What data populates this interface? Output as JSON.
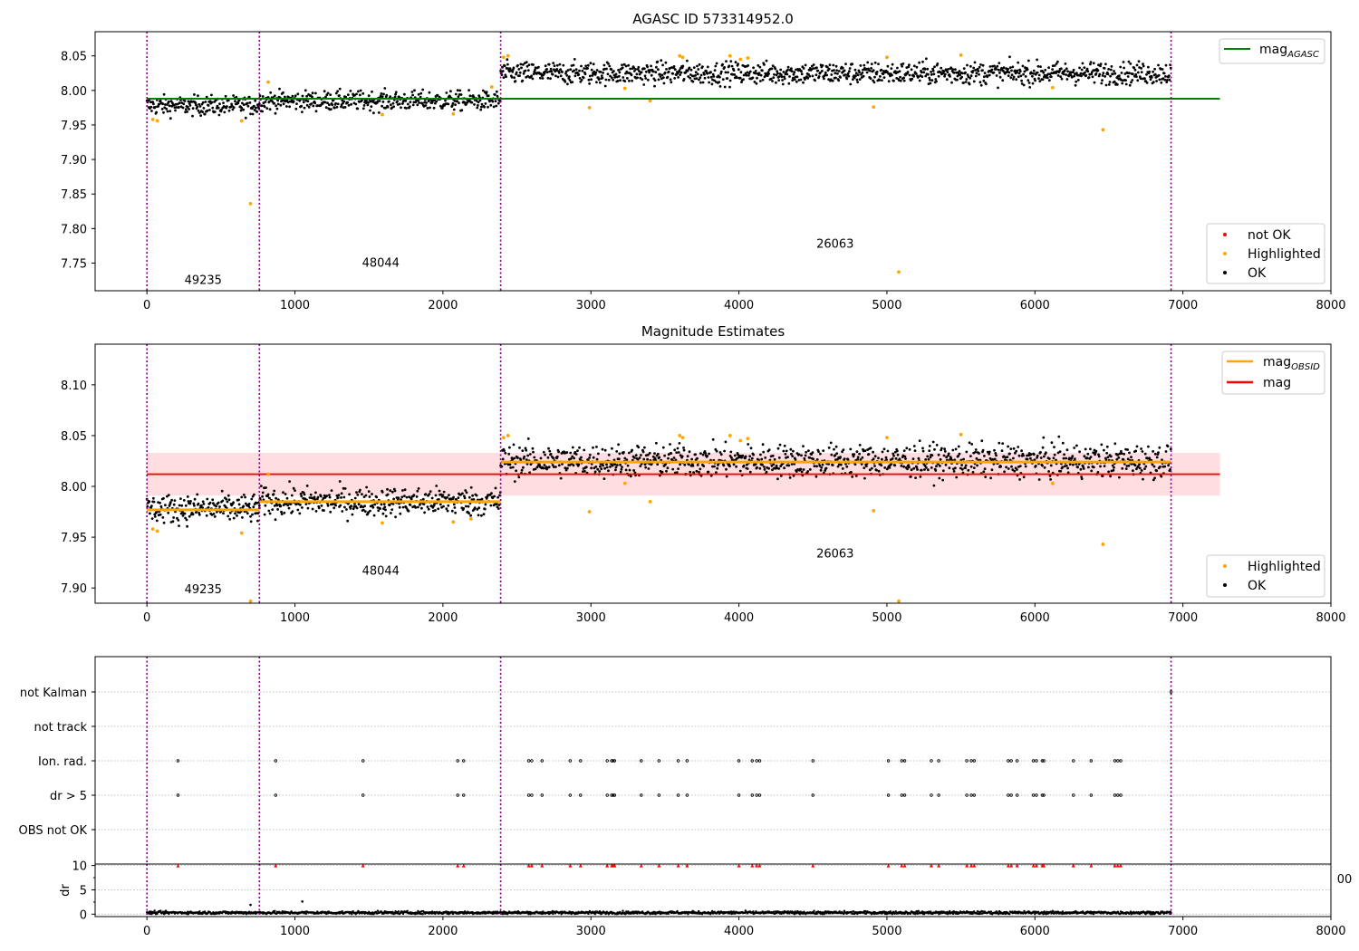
{
  "figure": {
    "title": "AGASC ID 573314952.0",
    "colors": {
      "ok": "#000000",
      "highlighted": "#ffa500",
      "not_ok": "#ff0000",
      "agasc_line": "#008000",
      "mag_line": "#ff0000",
      "mag_band": "#ffdde1",
      "obsid_line": "#ffa500",
      "boundary": "#800080",
      "grid": "#b0b0b0"
    }
  },
  "chart_data": [
    {
      "type": "scatter",
      "title": "AGASC ID 573314952.0",
      "xlim": [
        -350,
        8000
      ],
      "ylim": [
        7.71,
        8.085
      ],
      "xticks": [
        0,
        1000,
        2000,
        3000,
        4000,
        5000,
        6000,
        7000,
        8000
      ],
      "yticks": [
        7.75,
        7.8,
        7.85,
        7.9,
        7.95,
        8.0,
        8.05
      ],
      "obsid_boundaries": [
        0,
        760,
        2390,
        6920
      ],
      "obsid_labels": [
        {
          "text": "49235",
          "x": 380,
          "y": 7.72
        },
        {
          "text": "48044",
          "x": 1580,
          "y": 7.745
        },
        {
          "text": "26063",
          "x": 4650,
          "y": 7.772
        }
      ],
      "segments": [
        {
          "obsid": "49235",
          "x_range": [
            0,
            760
          ],
          "mag": 7.978,
          "spread": 0.007
        },
        {
          "obsid": "48044",
          "x_range": [
            760,
            2390
          ],
          "mag": 7.985,
          "spread": 0.007
        },
        {
          "obsid": "26063",
          "x_range": [
            2390,
            6920
          ],
          "mag": 8.025,
          "spread": 0.008
        }
      ],
      "series": [
        {
          "name": "mag_AGASC",
          "kind": "hline",
          "y": 7.988,
          "x_range": [
            0,
            7250
          ]
        }
      ],
      "highlighted": [
        [
          40,
          7.958
        ],
        [
          70,
          7.956
        ],
        [
          640,
          7.956
        ],
        [
          700,
          7.836
        ],
        [
          820,
          8.012
        ],
        [
          1590,
          7.965
        ],
        [
          2070,
          7.966
        ],
        [
          2330,
          8.005
        ],
        [
          2410,
          8.048
        ],
        [
          2440,
          8.05
        ],
        [
          2990,
          7.975
        ],
        [
          3230,
          8.003
        ],
        [
          3400,
          7.985
        ],
        [
          3600,
          8.05
        ],
        [
          3620,
          8.048
        ],
        [
          3940,
          8.05
        ],
        [
          4010,
          8.045
        ],
        [
          4060,
          8.047
        ],
        [
          4910,
          7.976
        ],
        [
          5000,
          8.048
        ],
        [
          5080,
          7.737
        ],
        [
          5500,
          8.051
        ],
        [
          6120,
          8.004
        ],
        [
          6460,
          7.943
        ]
      ],
      "legend_upper": {
        "position": "top-right",
        "entries": [
          {
            "label": "mag",
            "sub": "AGASC",
            "color": "#008000"
          }
        ]
      },
      "legend_lower": {
        "position": "bottom-right",
        "entries": [
          {
            "label": "not OK",
            "color": "#ff0000"
          },
          {
            "label": "Highlighted",
            "color": "#ffa500"
          },
          {
            "label": "OK",
            "color": "#000000"
          }
        ]
      }
    },
    {
      "type": "scatter",
      "title": "Magnitude Estimates",
      "xlim": [
        -350,
        8000
      ],
      "ylim": [
        7.885,
        8.14
      ],
      "xticks": [
        0,
        1000,
        2000,
        3000,
        4000,
        5000,
        6000,
        7000,
        8000
      ],
      "yticks": [
        7.9,
        7.95,
        8.0,
        8.05,
        8.1
      ],
      "obsid_boundaries": [
        0,
        760,
        2390,
        6920
      ],
      "obsid_labels": [
        {
          "text": "49235",
          "x": 380,
          "y": 7.895
        },
        {
          "text": "48044",
          "x": 1580,
          "y": 7.913
        },
        {
          "text": "26063",
          "x": 4650,
          "y": 7.93
        }
      ],
      "segments": [
        {
          "obsid": "49235",
          "x_range": [
            0,
            760
          ],
          "mag": 7.978,
          "spread": 0.007
        },
        {
          "obsid": "48044",
          "x_range": [
            760,
            2390
          ],
          "mag": 7.985,
          "spread": 0.007
        },
        {
          "obsid": "26063",
          "x_range": [
            2390,
            6920
          ],
          "mag": 8.025,
          "spread": 0.008
        }
      ],
      "series": [
        {
          "name": "mag_OBSID",
          "kind": "step",
          "steps": [
            [
              0,
              760,
              7.977
            ],
            [
              760,
              2390,
              7.985
            ],
            [
              2390,
              6920,
              8.024
            ]
          ]
        },
        {
          "name": "mag",
          "kind": "hline",
          "y": 8.012,
          "x_range": [
            0,
            7250
          ],
          "band": [
            7.991,
            8.033
          ]
        }
      ],
      "highlighted": [
        [
          40,
          7.958
        ],
        [
          70,
          7.956
        ],
        [
          640,
          7.954
        ],
        [
          700,
          7.887
        ],
        [
          820,
          8.012
        ],
        [
          1590,
          7.964
        ],
        [
          2070,
          7.965
        ],
        [
          2190,
          7.968
        ],
        [
          2410,
          8.048
        ],
        [
          2440,
          8.05
        ],
        [
          2990,
          7.975
        ],
        [
          3230,
          8.003
        ],
        [
          3400,
          7.985
        ],
        [
          3600,
          8.05
        ],
        [
          3620,
          8.048
        ],
        [
          3940,
          8.05
        ],
        [
          4010,
          8.045
        ],
        [
          4060,
          8.047
        ],
        [
          4910,
          7.976
        ],
        [
          5000,
          8.048
        ],
        [
          5080,
          7.887
        ],
        [
          5500,
          8.051
        ],
        [
          6120,
          8.003
        ],
        [
          6460,
          7.943
        ]
      ],
      "legend_upper": {
        "position": "top-right",
        "entries": [
          {
            "label": "mag",
            "sub": "OBSID",
            "color": "#ffa500"
          },
          {
            "label": "mag",
            "sub": "",
            "color": "#ff0000"
          }
        ]
      },
      "legend_lower": {
        "position": "bottom-right",
        "entries": [
          {
            "label": "Highlighted",
            "color": "#ffa500"
          },
          {
            "label": "OK",
            "color": "#000000"
          }
        ]
      }
    },
    {
      "type": "scatter",
      "title": "",
      "xlim": [
        -350,
        8000
      ],
      "categories": [
        "not Kalman",
        "not track",
        "Ion. rad.",
        "dr > 5",
        "OBS not OK"
      ],
      "obsid_boundaries": [
        0,
        760,
        2390,
        6920
      ],
      "flag_x": [
        210,
        870,
        1460,
        2100,
        2140,
        2580,
        2600,
        2670,
        2860,
        2930,
        3110,
        3140,
        3150,
        3160,
        3340,
        3460,
        3590,
        3650,
        4000,
        4090,
        4120,
        4140,
        4500,
        5010,
        5100,
        5120,
        5300,
        5350,
        5540,
        5570,
        5590,
        5820,
        5840,
        5880,
        5990,
        6010,
        6050,
        6060,
        6260,
        6380,
        6540,
        6560,
        6580
      ],
      "flags": [
        {
          "category": "not Kalman",
          "x": [
            6920
          ]
        },
        {
          "category": "not track",
          "x": []
        },
        {
          "category": "Ion. rad.",
          "x_ref": "flag_x"
        },
        {
          "category": "dr > 5",
          "x_ref": "flag_x"
        },
        {
          "category": "OBS not OK",
          "x": []
        }
      ]
    },
    {
      "type": "scatter",
      "title": "",
      "ylabel": "dr",
      "xlim": [
        -350,
        8000
      ],
      "ylim": [
        -0.5,
        10.3
      ],
      "xticks": [
        0,
        1000,
        2000,
        3000,
        4000,
        5000,
        6000,
        7000,
        8000
      ],
      "yticks": [
        0,
        5,
        10
      ],
      "obsid_boundaries": [
        0,
        760,
        2390,
        6920
      ],
      "baseline": {
        "x_range": [
          0,
          6920
        ],
        "level": 0.3,
        "spread": 0.15
      },
      "outliers": [
        [
          700,
          1.9
        ],
        [
          1050,
          2.6
        ]
      ],
      "clipped_x_ref": "flag_x",
      "clipped_value": 10,
      "stray_tick_label": "00"
    }
  ]
}
